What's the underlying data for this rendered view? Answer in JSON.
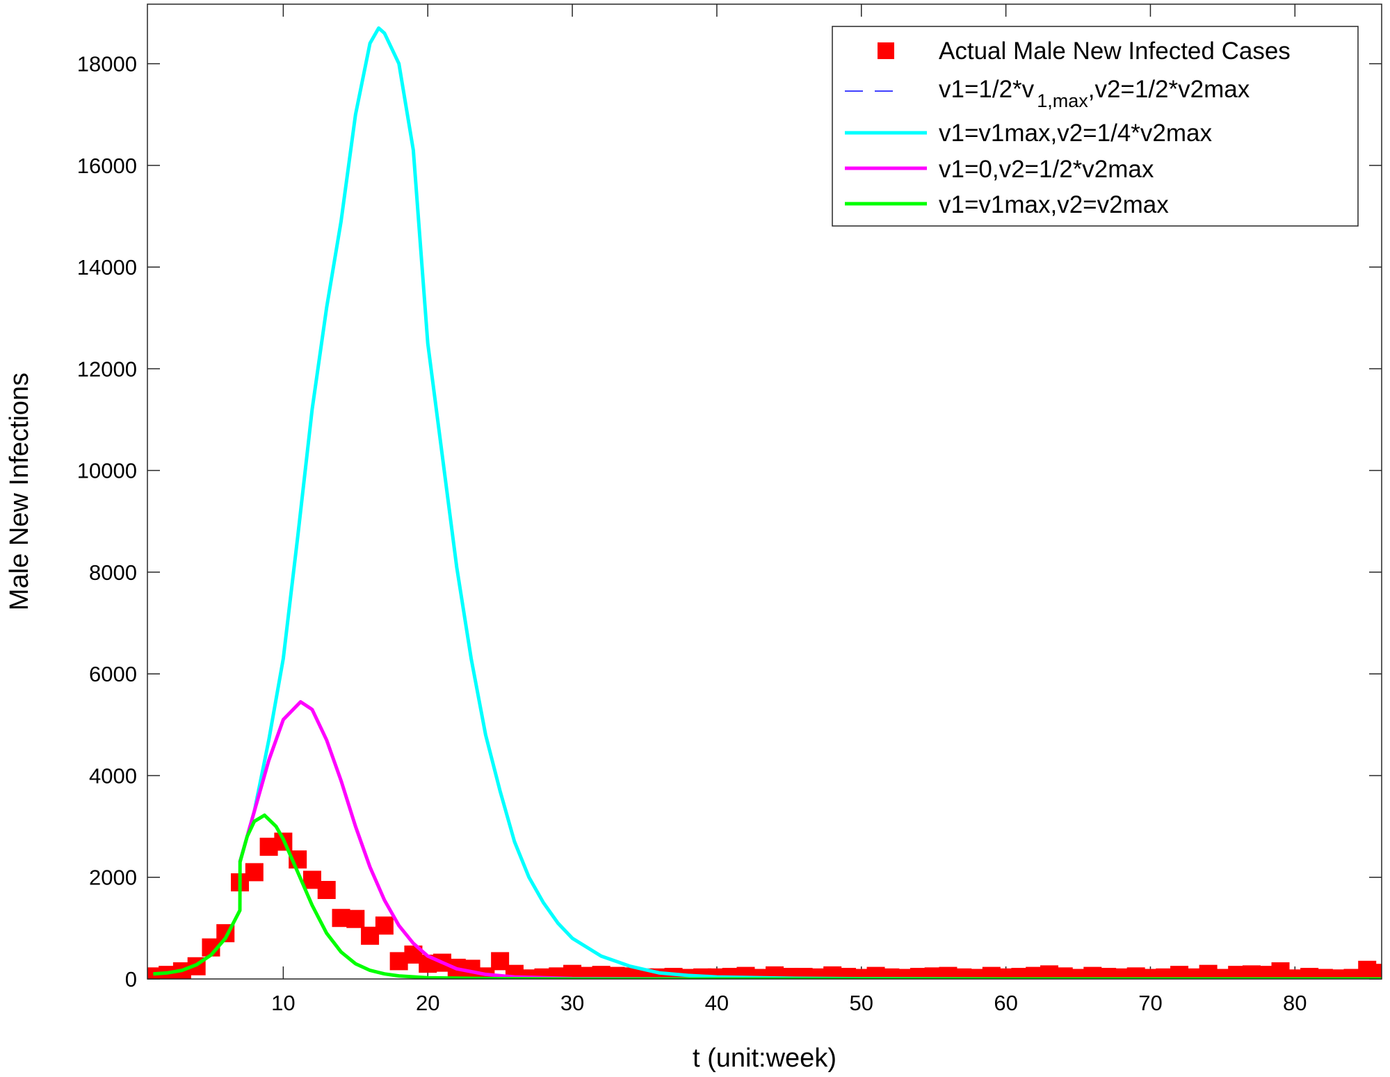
{
  "chart_data": {
    "type": "line",
    "title": "",
    "xlabel": "t (unit:week)",
    "ylabel": "Male New Infections",
    "xlim": [
      0.6,
      86
    ],
    "ylim": [
      0,
      19170
    ],
    "xticks": [
      10,
      20,
      30,
      40,
      50,
      60,
      70,
      80
    ],
    "yticks": [
      0,
      2000,
      4000,
      6000,
      8000,
      10000,
      12000,
      14000,
      16000,
      18000
    ],
    "grid": false,
    "legend_position": "top-right",
    "scatter": {
      "name": "Actual Male New Infected Cases",
      "color": "#ff0000",
      "marker": "square",
      "x": [
        1,
        2,
        3,
        4,
        5,
        6,
        7,
        8,
        9,
        10,
        11,
        12,
        13,
        14,
        15,
        16,
        17,
        18,
        19,
        20,
        21,
        22,
        23,
        24,
        25,
        26,
        27,
        28,
        29,
        30,
        31,
        32,
        33,
        34,
        35,
        36,
        37,
        38,
        39,
        40,
        41,
        42,
        43,
        44,
        45,
        46,
        47,
        48,
        49,
        50,
        51,
        52,
        53,
        54,
        55,
        56,
        57,
        58,
        59,
        60,
        61,
        62,
        63,
        64,
        65,
        66,
        67,
        68,
        69,
        70,
        71,
        72,
        73,
        74,
        75,
        76,
        77,
        78,
        79,
        80,
        81,
        82,
        83,
        84,
        85,
        86
      ],
      "y": [
        50,
        80,
        150,
        250,
        620,
        900,
        1900,
        2100,
        2600,
        2700,
        2350,
        1950,
        1750,
        1200,
        1180,
        850,
        1050,
        350,
        480,
        300,
        320,
        220,
        200,
        50,
        350,
        100,
        10,
        30,
        50,
        100,
        60,
        80,
        60,
        50,
        30,
        30,
        40,
        20,
        30,
        30,
        40,
        60,
        20,
        70,
        40,
        40,
        30,
        70,
        40,
        20,
        60,
        30,
        20,
        40,
        50,
        60,
        30,
        20,
        60,
        30,
        40,
        60,
        90,
        50,
        20,
        60,
        40,
        30,
        50,
        20,
        30,
        80,
        30,
        100,
        20,
        80,
        90,
        80,
        150,
        10,
        40,
        20,
        10,
        20,
        180,
        120
      ]
    },
    "series": [
      {
        "name_main": "v1=1/2*v",
        "name_sub": "1,max",
        "name_tail": ",v2=1/2*v2max",
        "color": "#0000ff",
        "style": "dashed",
        "x": [],
        "y": []
      },
      {
        "name": "v1=v1max,v2=1/4*v2max",
        "color": "#00ffff",
        "style": "solid",
        "x": [
          7,
          8,
          9,
          10,
          11,
          12,
          13,
          14,
          15,
          16,
          16.6,
          17,
          18,
          19,
          20,
          21,
          22,
          23,
          24,
          25,
          26,
          27,
          28,
          29,
          30,
          32,
          34,
          36,
          38,
          40,
          45,
          50,
          60,
          70,
          86
        ],
        "y": [
          2300,
          3300,
          4700,
          6300,
          8700,
          11200,
          13200,
          14900,
          17000,
          18400,
          18700,
          18600,
          18000,
          16300,
          12500,
          10300,
          8100,
          6300,
          4800,
          3700,
          2700,
          2000,
          1500,
          1100,
          800,
          450,
          250,
          120,
          70,
          40,
          15,
          5,
          0,
          0,
          0
        ]
      },
      {
        "name": "v1=0,v2=1/2*v2max",
        "color": "#ff00ff",
        "style": "solid",
        "x": [
          7,
          8,
          9,
          10,
          11.2,
          12,
          13,
          14,
          15,
          16,
          17,
          18,
          19,
          20,
          22,
          24,
          26,
          30,
          40,
          60,
          86
        ],
        "y": [
          2300,
          3300,
          4300,
          5100,
          5450,
          5300,
          4700,
          3900,
          3000,
          2200,
          1550,
          1050,
          700,
          450,
          200,
          90,
          40,
          10,
          0,
          0,
          0
        ]
      },
      {
        "name": "v1=v1max,v2=v2max",
        "color": "#00ff00",
        "style": "solid",
        "x": [
          1,
          2,
          3,
          4,
          5,
          6,
          7,
          7.01,
          7.5,
          8,
          8.7,
          9.5,
          10,
          11,
          12,
          13,
          14,
          15,
          16,
          17,
          18,
          20,
          25,
          30,
          60,
          86
        ],
        "y": [
          100,
          120,
          170,
          280,
          470,
          800,
          1350,
          2300,
          2800,
          3100,
          3220,
          3000,
          2750,
          2100,
          1450,
          900,
          530,
          300,
          170,
          100,
          60,
          25,
          5,
          0,
          0,
          0
        ]
      }
    ]
  }
}
